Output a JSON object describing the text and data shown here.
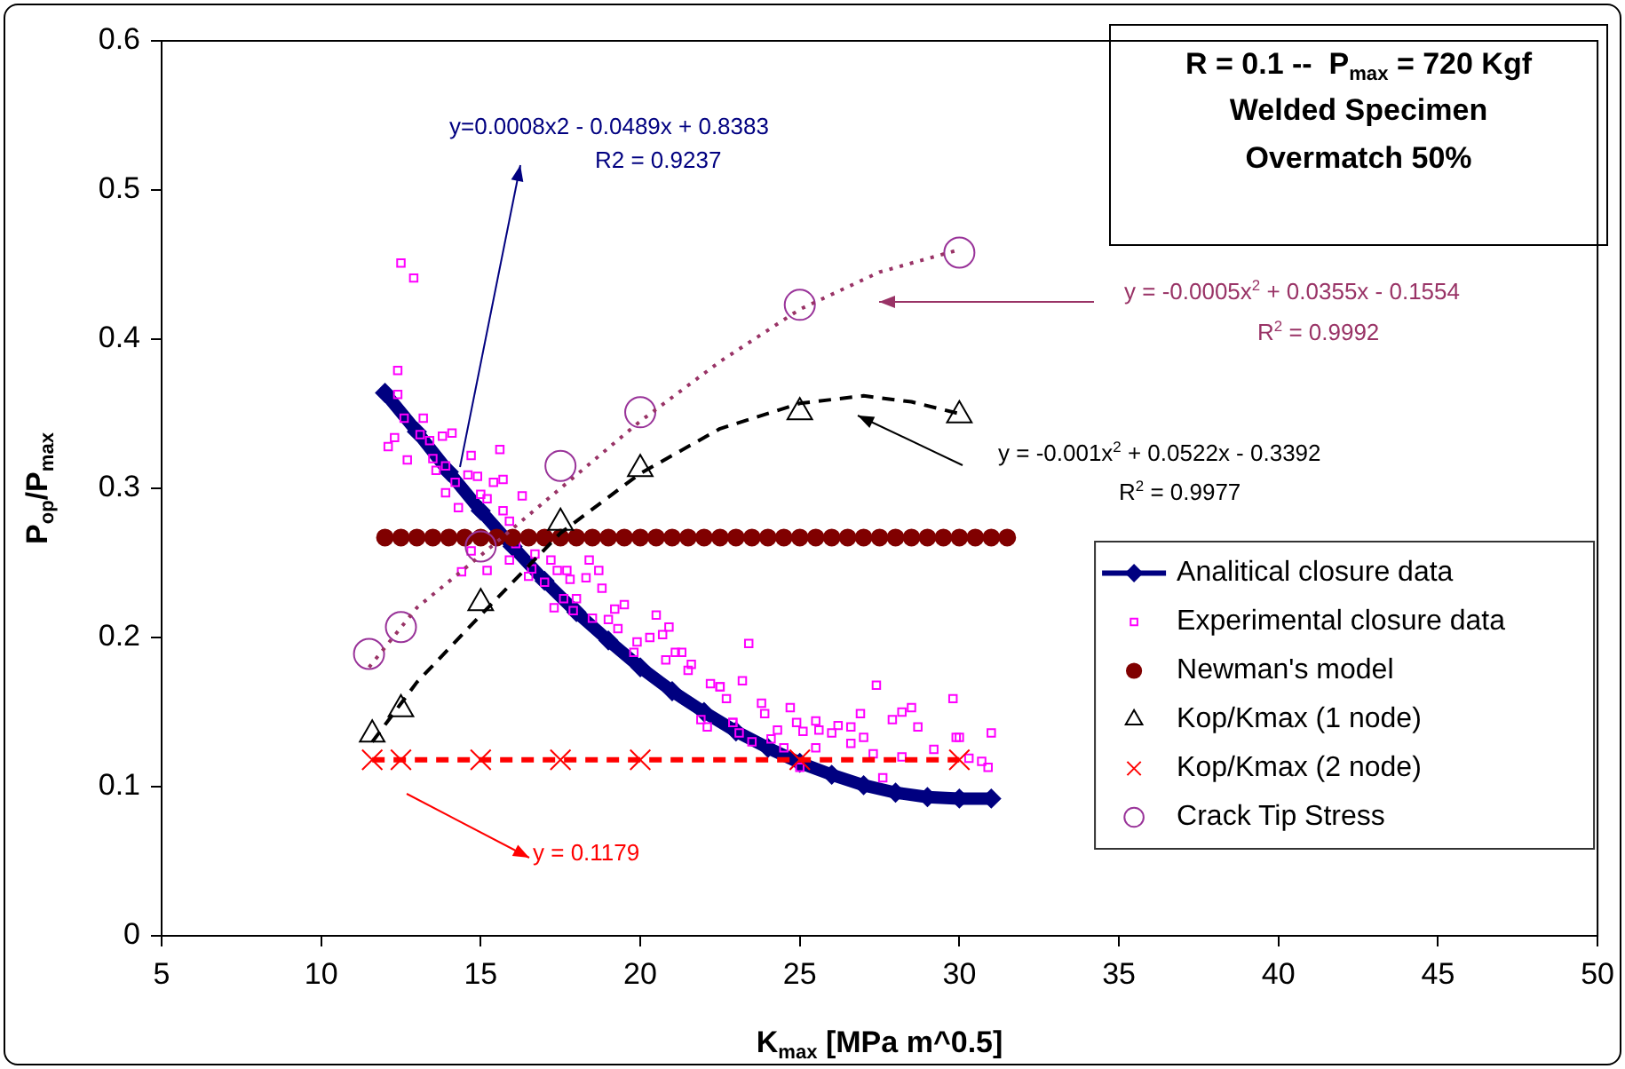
{
  "chart_data": {
    "type": "scatter",
    "xlabel": "K$_{max}$ [MPa m^0.5]",
    "ylabel": "P$_{op}$/P$_{max}$",
    "xlim": [
      5,
      50
    ],
    "xticks": [
      5,
      10,
      15,
      20,
      25,
      30,
      35,
      40,
      45,
      50
    ],
    "ylim": [
      0,
      0.6
    ],
    "yticks": [
      0,
      0.1,
      0.2,
      0.3,
      0.4,
      0.5,
      0.6
    ],
    "grid": false,
    "legend": "right",
    "series": [
      {
        "name": "Analitical closure data",
        "type": "line",
        "marker": "diamond",
        "line_style": "solid",
        "color": "#000080",
        "x": [
          12,
          13,
          14,
          15,
          16,
          17,
          18,
          19,
          20,
          21,
          22,
          23,
          24,
          25,
          26,
          27,
          28,
          29,
          30,
          31
        ],
        "values": [
          0.364,
          0.338,
          0.311,
          0.285,
          0.261,
          0.238,
          0.217,
          0.198,
          0.18,
          0.164,
          0.15,
          0.137,
          0.126,
          0.116,
          0.108,
          0.101,
          0.096,
          0.093,
          0.092,
          0.092
        ]
      },
      {
        "name": "Experimental closure data",
        "type": "scatter",
        "marker": "square",
        "color": "#ff00ff",
        "x": [
          12.5,
          12.9,
          12.4,
          12.4,
          12.6,
          13.2,
          12.3,
          12.1,
          12.7,
          13.1,
          13.4,
          13.8,
          14.1,
          13.5,
          13.9,
          13.6,
          14.2,
          14.7,
          15.6,
          14.6,
          14.9,
          13.9,
          14.3,
          15.0,
          15.4,
          15.7,
          15.2,
          16.3,
          15.7,
          15.9,
          14.7,
          14.4,
          15.2,
          15.9,
          16.1,
          16.5,
          16.7,
          16.6,
          17.2,
          17.0,
          17.4,
          17.7,
          17.8,
          18.4,
          18.7,
          18.3,
          18.8,
          17.3,
          17.6,
          17.9,
          18.0,
          18.5,
          19.0,
          19.2,
          19.5,
          19.3,
          19.9,
          20.3,
          20.5,
          20.9,
          20.7,
          19.8,
          20.8,
          21.1,
          21.3,
          21.5,
          21.6,
          23.4,
          23.2,
          22.2,
          22.5,
          22.7,
          23.8,
          22.9,
          21.9,
          22.1,
          23.1,
          23.9,
          24.7,
          24.9,
          25.5,
          25.1,
          25.6,
          26.0,
          26.2,
          26.6,
          26.9,
          27.0,
          26.6,
          27.4,
          27.9,
          28.2,
          28.5,
          28.7,
          27.3,
          28.2,
          27.6,
          29.2,
          29.8,
          29.9,
          30.0,
          31.0,
          30.3,
          30.7,
          30.9,
          25.0,
          25.5,
          24.5,
          24.1,
          24.3,
          23.5,
          22.9,
          22.5
        ],
        "values": [
          0.451,
          0.441,
          0.379,
          0.363,
          0.347,
          0.347,
          0.334,
          0.328,
          0.319,
          0.336,
          0.332,
          0.335,
          0.337,
          0.32,
          0.315,
          0.312,
          0.304,
          0.322,
          0.326,
          0.309,
          0.308,
          0.297,
          0.287,
          0.296,
          0.304,
          0.306,
          0.293,
          0.295,
          0.285,
          0.278,
          0.258,
          0.244,
          0.245,
          0.252,
          0.263,
          0.241,
          0.256,
          0.246,
          0.252,
          0.237,
          0.245,
          0.245,
          0.239,
          0.252,
          0.245,
          0.24,
          0.233,
          0.22,
          0.226,
          0.218,
          0.226,
          0.213,
          0.212,
          0.219,
          0.222,
          0.206,
          0.197,
          0.2,
          0.215,
          0.207,
          0.202,
          0.19,
          0.185,
          0.19,
          0.19,
          0.178,
          0.182,
          0.196,
          0.171,
          0.169,
          0.167,
          0.159,
          0.156,
          0.143,
          0.145,
          0.14,
          0.136,
          0.149,
          0.153,
          0.143,
          0.144,
          0.137,
          0.138,
          0.136,
          0.141,
          0.14,
          0.149,
          0.133,
          0.129,
          0.168,
          0.145,
          0.15,
          0.153,
          0.14,
          0.122,
          0.12,
          0.106,
          0.125,
          0.159,
          0.133,
          0.133,
          0.136,
          0.119,
          0.117,
          0.113,
          0.113,
          0.126,
          0.126,
          0.132,
          0.138,
          0.13,
          0.143,
          0.167
        ]
      },
      {
        "name": "Newman's model",
        "type": "scatter",
        "marker": "circle",
        "color": "#800000",
        "x": [
          12,
          12.5,
          13,
          13.5,
          14,
          14.5,
          15,
          15.5,
          16,
          16.5,
          17,
          17.5,
          18,
          18.5,
          19,
          19.5,
          20,
          20.5,
          21,
          21.5,
          22,
          22.5,
          23,
          23.5,
          24,
          24.5,
          25,
          25.5,
          26,
          26.5,
          27,
          27.5,
          28,
          28.5,
          29,
          29.5,
          30,
          30.5,
          31,
          31.5
        ],
        "values": [
          0.267,
          0.267,
          0.267,
          0.267,
          0.267,
          0.267,
          0.267,
          0.267,
          0.267,
          0.267,
          0.267,
          0.267,
          0.267,
          0.267,
          0.267,
          0.267,
          0.267,
          0.267,
          0.267,
          0.267,
          0.267,
          0.267,
          0.267,
          0.267,
          0.267,
          0.267,
          0.267,
          0.267,
          0.267,
          0.267,
          0.267,
          0.267,
          0.267,
          0.267,
          0.267,
          0.267,
          0.267,
          0.267,
          0.267,
          0.267
        ]
      },
      {
        "name": "Kop/Kmax (1 node)",
        "type": "scatter",
        "marker": "triangle",
        "color": "#000000",
        "x": [
          11.6,
          12.5,
          15,
          17.5,
          20,
          25,
          30
        ],
        "values": [
          0.135,
          0.152,
          0.223,
          0.277,
          0.313,
          0.351,
          0.349
        ]
      },
      {
        "name": "Kop/Kmax (2 node)",
        "type": "scatter",
        "marker": "cross",
        "color": "#ff0000",
        "x": [
          11.6,
          12.5,
          15,
          17.5,
          20,
          25,
          30
        ],
        "values": [
          0.118,
          0.118,
          0.118,
          0.118,
          0.118,
          0.118,
          0.118
        ]
      },
      {
        "name": "Crack Tip Stress",
        "type": "scatter",
        "marker": "circle",
        "color": "#993399",
        "x": [
          11.5,
          12.5,
          15,
          17.5,
          20,
          25,
          30
        ],
        "values": [
          0.189,
          0.207,
          0.261,
          0.315,
          0.351,
          0.423,
          0.458
        ]
      },
      {
        "type": "line",
        "marker": "none",
        "line_style": "dashed",
        "color": "#000000",
        "x": [
          11.6,
          13,
          15,
          17.5,
          20,
          22.5,
          25,
          27,
          28.5,
          30
        ],
        "values": [
          0.13,
          0.17,
          0.215,
          0.27,
          0.31,
          0.34,
          0.357,
          0.362,
          0.358,
          0.35
        ]
      },
      {
        "type": "line",
        "marker": "none",
        "line_style": "dashed",
        "color": "#ff0000",
        "x": [
          11.6,
          30
        ],
        "values": [
          0.118,
          0.118
        ]
      },
      {
        "type": "line",
        "marker": "none",
        "line_style": "dotted",
        "color": "#993366",
        "x": [
          11.5,
          13,
          15,
          17.5,
          20,
          22.5,
          25,
          27.5,
          30
        ],
        "values": [
          0.18,
          0.22,
          0.255,
          0.3,
          0.345,
          0.385,
          0.42,
          0.445,
          0.46
        ]
      }
    ],
    "annotations": [
      "R = 0.1 --  P$_{max}$ = 720 Kgf\nWelded Specimen\nOvermatch 50%",
      "y=0.0008x2 - 0.0489x + 0.8383\nR2 = 0.9237",
      "y = -0.0005x$^{2}$ + 0.0355x - 0.1554\nR$^{2}$ = 0.9992",
      "y = -0.001x$^{2}$ + 0.0522x - 0.3392\nR$^{2}$ = 0.9977",
      "y = 0.1179"
    ]
  }
}
